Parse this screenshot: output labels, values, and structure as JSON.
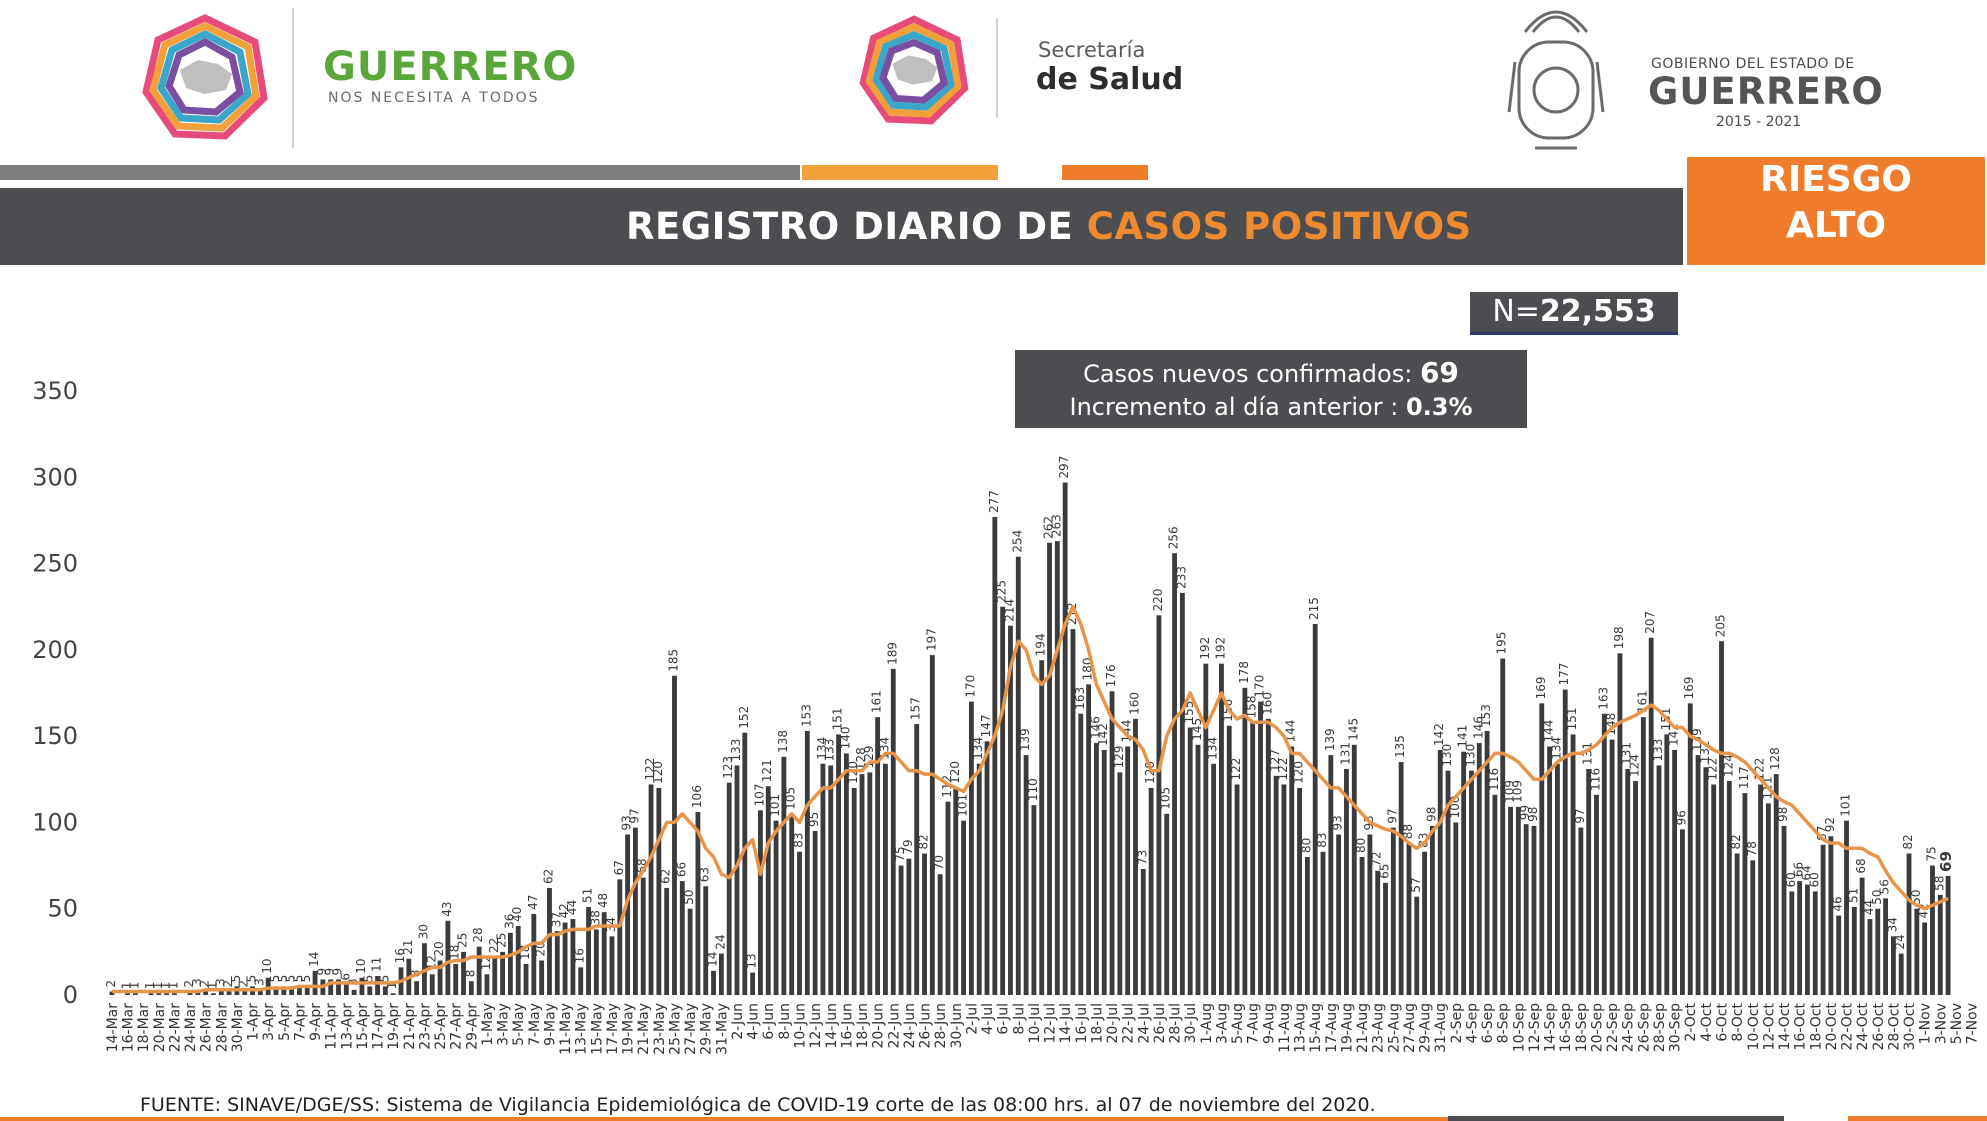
{
  "header": {
    "guerrero_word": "GUERRERO",
    "guerrero_sub": "NOS NECESITA A TODOS",
    "secretaria_top": "Secretaría",
    "secretaria_bottom": "de Salud",
    "gobierno_top": "GOBIERNO DEL ESTADO DE",
    "gobierno_name": "GUERRERO",
    "gobierno_years": "2015 - 2021"
  },
  "title": {
    "part1": "REGISTRO DIARIO DE ",
    "part2": "CASOS POSITIVOS"
  },
  "risk": {
    "line1": "RIESGO",
    "line2": "ALTO"
  },
  "total": {
    "prefix": "N=",
    "value": "22,553"
  },
  "summary": {
    "line1_label": "Casos nuevos confirmados: ",
    "line1_value": "69",
    "line2_label": "Incremento al día anterior : ",
    "line2_value": "0.3%"
  },
  "footer": {
    "source": "FUENTE: SINAVE/DGE/SS: Sistema de Vigilancia Epidemiológica de COVID-19 corte de las 08:00 hrs. al 07 de noviembre del 2020."
  },
  "colors": {
    "bar": "#3b3b3d",
    "line": "#e8954a",
    "accent": "#ef7d2c",
    "band": "#4c4d50"
  },
  "chart_data": {
    "type": "bar",
    "ylim": [
      0,
      350
    ],
    "yticks": [
      0,
      50,
      100,
      150,
      200,
      250,
      300,
      350
    ],
    "x_tick_labels": [
      "14-Mar",
      "16-Mar",
      "18-Mar",
      "20-Mar",
      "22-Mar",
      "24-Mar",
      "26-Mar",
      "28-Mar",
      "30-Mar",
      "1-Apr",
      "3-Apr",
      "5-Apr",
      "7-Apr",
      "9-Apr",
      "11-Apr",
      "13-Apr",
      "15-Apr",
      "17-Apr",
      "19-Apr",
      "21-Apr",
      "23-Apr",
      "25-Apr",
      "27-Apr",
      "29-Apr",
      "1-May",
      "3-May",
      "5-May",
      "7-May",
      "9-May",
      "11-May",
      "13-May",
      "15-May",
      "17-May",
      "19-May",
      "21-May",
      "23-May",
      "25-May",
      "27-May",
      "29-May",
      "31-May",
      "2-Jun",
      "4-Jun",
      "6-Jun",
      "8-Jun",
      "10-Jun",
      "12-Jun",
      "14-Jun",
      "16-Jun",
      "18-Jun",
      "20-Jun",
      "22-Jun",
      "24-Jun",
      "26-Jun",
      "28-Jun",
      "30-Jun",
      "2-Jul",
      "4-Jul",
      "6-Jul",
      "8-Jul",
      "10-Jul",
      "12-Jul",
      "14-Jul",
      "16-Jul",
      "18-Jul",
      "20-Jul",
      "22-Jul",
      "24-Jul",
      "26-Jul",
      "28-Jul",
      "30-Jul",
      "1-Aug",
      "3-Aug",
      "5-Aug",
      "7-Aug",
      "9-Aug",
      "11-Aug",
      "13-Aug",
      "15-Aug",
      "17-Aug",
      "19-Aug",
      "21-Aug",
      "23-Aug",
      "25-Aug",
      "27-Aug",
      "29-Aug",
      "31-Aug",
      "2-Sep",
      "4-Sep",
      "6-Sep",
      "8-Sep",
      "10-Sep",
      "12-Sep",
      "14-Sep",
      "16-Sep",
      "18-Sep",
      "20-Sep",
      "22-Sep",
      "24-Sep",
      "26-Sep",
      "28-Sep",
      "30-Sep",
      "2-Oct",
      "4-Oct",
      "6-Oct",
      "8-Oct",
      "10-Oct",
      "12-Oct",
      "14-Oct",
      "16-Oct",
      "18-Oct",
      "20-Oct",
      "22-Oct",
      "24-Oct",
      "26-Oct",
      "28-Oct",
      "30-Oct",
      "1-Nov",
      "3-Nov",
      "5-Nov",
      "7-Nov"
    ],
    "values": [
      2,
      0,
      1,
      1,
      0,
      1,
      1,
      1,
      1,
      0,
      2,
      3,
      2,
      1,
      3,
      2,
      5,
      2,
      5,
      3,
      10,
      5,
      5,
      5,
      5,
      5,
      14,
      9,
      9,
      9,
      6,
      3,
      10,
      5,
      11,
      5,
      1,
      16,
      21,
      8,
      30,
      12,
      20,
      43,
      18,
      25,
      8,
      28,
      12,
      22,
      25,
      36,
      40,
      18,
      47,
      20,
      62,
      37,
      42,
      44,
      16,
      51,
      38,
      48,
      34,
      67,
      93,
      97,
      68,
      122,
      120,
      62,
      185,
      66,
      50,
      106,
      63,
      14,
      24,
      123,
      133,
      152,
      13,
      107,
      121,
      101,
      138,
      105,
      83,
      153,
      95,
      134,
      133,
      151,
      140,
      120,
      128,
      129,
      161,
      134,
      189,
      75,
      79,
      157,
      82,
      197,
      70,
      112,
      120,
      101,
      170,
      134,
      147,
      277,
      225,
      214,
      254,
      139,
      110,
      194,
      262,
      263,
      297,
      212,
      163,
      180,
      146,
      142,
      176,
      129,
      144,
      160,
      73,
      120,
      220,
      105,
      256,
      233,
      155,
      145,
      192,
      134,
      192,
      156,
      122,
      178,
      158,
      170,
      160,
      127,
      122,
      144,
      120,
      80,
      215,
      83,
      139,
      93,
      131,
      145,
      80,
      93,
      72,
      65,
      97,
      135,
      88,
      57,
      83,
      98,
      142,
      130,
      100,
      141,
      130,
      146,
      153,
      116,
      195,
      109,
      109,
      99,
      98,
      169,
      144,
      134,
      177,
      151,
      97,
      131,
      116,
      163,
      148,
      198,
      131,
      124,
      161,
      207,
      133,
      151,
      142,
      96,
      169,
      139,
      132,
      122,
      205,
      124,
      82,
      117,
      78,
      122,
      111,
      128,
      98,
      60,
      66,
      64,
      60,
      87,
      92,
      46,
      101,
      51,
      68,
      44,
      50,
      56,
      34,
      24,
      82,
      50,
      42,
      75,
      58,
      69
    ],
    "moving_average": [
      2,
      2,
      2,
      2,
      2,
      2,
      2,
      2,
      2,
      2,
      2,
      2,
      3,
      3,
      3,
      3,
      3,
      3,
      3,
      3,
      4,
      4,
      4,
      4,
      5,
      5,
      5,
      5,
      7,
      7,
      7,
      7,
      7,
      7,
      7,
      7,
      7,
      8,
      10,
      12,
      14,
      16,
      16,
      19,
      20,
      20,
      22,
      22,
      22,
      22,
      22,
      23,
      25,
      28,
      30,
      30,
      35,
      35,
      37,
      38,
      38,
      38,
      40,
      40,
      40,
      40,
      55,
      65,
      72,
      80,
      90,
      100,
      100,
      105,
      100,
      95,
      85,
      80,
      70,
      68,
      75,
      85,
      90,
      70,
      88,
      95,
      100,
      105,
      100,
      110,
      115,
      120,
      120,
      125,
      130,
      130,
      130,
      135,
      135,
      140,
      140,
      135,
      130,
      130,
      128,
      128,
      125,
      122,
      120,
      118,
      125,
      130,
      140,
      150,
      165,
      190,
      205,
      200,
      185,
      180,
      185,
      200,
      215,
      225,
      215,
      200,
      180,
      170,
      160,
      155,
      150,
      148,
      142,
      130,
      130,
      150,
      160,
      165,
      175,
      165,
      155,
      165,
      175,
      165,
      160,
      162,
      158,
      158,
      158,
      155,
      150,
      140,
      140,
      135,
      130,
      125,
      120,
      120,
      115,
      110,
      105,
      100,
      98,
      96,
      95,
      92,
      88,
      85,
      88,
      95,
      100,
      110,
      115,
      120,
      125,
      130,
      135,
      140,
      140,
      138,
      135,
      130,
      125,
      125,
      130,
      135,
      138,
      140,
      140,
      142,
      145,
      150,
      155,
      158,
      160,
      162,
      165,
      168,
      165,
      160,
      155,
      155,
      150,
      148,
      145,
      142,
      140,
      140,
      138,
      135,
      130,
      125,
      120,
      115,
      112,
      110,
      105,
      100,
      95,
      90,
      88,
      88,
      85,
      85,
      85,
      82,
      80,
      72,
      65,
      60,
      55,
      52,
      50,
      52,
      54,
      56
    ]
  }
}
